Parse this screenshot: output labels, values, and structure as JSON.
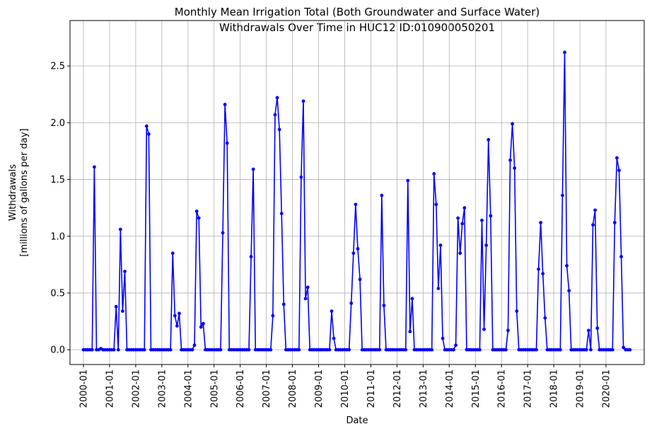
{
  "chart_data": {
    "type": "line",
    "title": [
      "Monthly Mean Irrigation Total (Both Groundwater and Surface Water)",
      "Withdrawals Over Time in HUC12 ID:010900050201"
    ],
    "xlabel": "Date",
    "ylabel": [
      "Withdrawals",
      "[millions of gallons per day]"
    ],
    "color": "#0000ff",
    "grid": true,
    "x": [
      "2000-01",
      "2000-02",
      "2000-03",
      "2000-04",
      "2000-05",
      "2000-06",
      "2000-07",
      "2000-08",
      "2000-09",
      "2000-10",
      "2000-11",
      "2000-12",
      "2001-01",
      "2001-02",
      "2001-03",
      "2001-04",
      "2001-05",
      "2001-06",
      "2001-07",
      "2001-08",
      "2001-09",
      "2001-10",
      "2001-11",
      "2001-12",
      "2002-01",
      "2002-02",
      "2002-03",
      "2002-04",
      "2002-05",
      "2002-06",
      "2002-07",
      "2002-08",
      "2002-09",
      "2002-10",
      "2002-11",
      "2002-12",
      "2003-01",
      "2003-02",
      "2003-03",
      "2003-04",
      "2003-05",
      "2003-06",
      "2003-07",
      "2003-08",
      "2003-09",
      "2003-10",
      "2003-11",
      "2003-12",
      "2004-01",
      "2004-02",
      "2004-03",
      "2004-04",
      "2004-05",
      "2004-06",
      "2004-07",
      "2004-08",
      "2004-09",
      "2004-10",
      "2004-11",
      "2004-12",
      "2005-01",
      "2005-02",
      "2005-03",
      "2005-04",
      "2005-05",
      "2005-06",
      "2005-07",
      "2005-08",
      "2005-09",
      "2005-10",
      "2005-11",
      "2005-12",
      "2006-01",
      "2006-02",
      "2006-03",
      "2006-04",
      "2006-05",
      "2006-06",
      "2006-07",
      "2006-08",
      "2006-09",
      "2006-10",
      "2006-11",
      "2006-12",
      "2007-01",
      "2007-02",
      "2007-03",
      "2007-04",
      "2007-05",
      "2007-06",
      "2007-07",
      "2007-08",
      "2007-09",
      "2007-10",
      "2007-11",
      "2007-12",
      "2008-01",
      "2008-02",
      "2008-03",
      "2008-04",
      "2008-05",
      "2008-06",
      "2008-07",
      "2008-08",
      "2008-09",
      "2008-10",
      "2008-11",
      "2008-12",
      "2009-01",
      "2009-02",
      "2009-03",
      "2009-04",
      "2009-05",
      "2009-06",
      "2009-07",
      "2009-08",
      "2009-09",
      "2009-10",
      "2009-11",
      "2009-12",
      "2010-01",
      "2010-02",
      "2010-03",
      "2010-04",
      "2010-05",
      "2010-06",
      "2010-07",
      "2010-08",
      "2010-09",
      "2010-10",
      "2010-11",
      "2010-12",
      "2011-01",
      "2011-02",
      "2011-03",
      "2011-04",
      "2011-05",
      "2011-06",
      "2011-07",
      "2011-08",
      "2011-09",
      "2011-10",
      "2011-11",
      "2011-12",
      "2012-01",
      "2012-02",
      "2012-03",
      "2012-04",
      "2012-05",
      "2012-06",
      "2012-07",
      "2012-08",
      "2012-09",
      "2012-10",
      "2012-11",
      "2012-12",
      "2013-01",
      "2013-02",
      "2013-03",
      "2013-04",
      "2013-05",
      "2013-06",
      "2013-07",
      "2013-08",
      "2013-09",
      "2013-10",
      "2013-11",
      "2013-12",
      "2014-01",
      "2014-02",
      "2014-03",
      "2014-04",
      "2014-05",
      "2014-06",
      "2014-07",
      "2014-08",
      "2014-09",
      "2014-10",
      "2014-11",
      "2014-12",
      "2015-01",
      "2015-02",
      "2015-03",
      "2015-04",
      "2015-05",
      "2015-06",
      "2015-07",
      "2015-08",
      "2015-09",
      "2015-10",
      "2015-11",
      "2015-12",
      "2016-01",
      "2016-02",
      "2016-03",
      "2016-04",
      "2016-05",
      "2016-06",
      "2016-07",
      "2016-08",
      "2016-09",
      "2016-10",
      "2016-11",
      "2016-12",
      "2017-01",
      "2017-02",
      "2017-03",
      "2017-04",
      "2017-05",
      "2017-06",
      "2017-07",
      "2017-08",
      "2017-09",
      "2017-10",
      "2017-11",
      "2017-12",
      "2018-01",
      "2018-02",
      "2018-03",
      "2018-04",
      "2018-05",
      "2018-06",
      "2018-07",
      "2018-08",
      "2018-09",
      "2018-10",
      "2018-11",
      "2018-12",
      "2019-01",
      "2019-02",
      "2019-03",
      "2019-04",
      "2019-05",
      "2019-06",
      "2019-07",
      "2019-08",
      "2019-09",
      "2019-10",
      "2019-11",
      "2019-12",
      "2020-01",
      "2020-02",
      "2020-03",
      "2020-04",
      "2020-05",
      "2020-06",
      "2020-07",
      "2020-08",
      "2020-09",
      "2020-10",
      "2020-11",
      "2020-12"
    ],
    "values": [
      0,
      0,
      0,
      0,
      0,
      1.61,
      0,
      0,
      0.01,
      0,
      0,
      0,
      0,
      0,
      0,
      0.38,
      0,
      1.06,
      0.34,
      0.69,
      0,
      0,
      0,
      0,
      0,
      0,
      0,
      0,
      0,
      1.97,
      1.9,
      0,
      0,
      0,
      0,
      0,
      0,
      0,
      0,
      0,
      0,
      0.85,
      0.3,
      0.21,
      0.32,
      0,
      0,
      0,
      0,
      0,
      0,
      0.04,
      1.22,
      1.16,
      0.2,
      0.23,
      0,
      0,
      0,
      0,
      0,
      0,
      0,
      0,
      1.03,
      2.16,
      1.82,
      0,
      0,
      0,
      0,
      0,
      0,
      0,
      0,
      0,
      0,
      0.82,
      1.59,
      0,
      0,
      0,
      0,
      0,
      0,
      0,
      0,
      0.3,
      2.07,
      2.22,
      1.94,
      1.2,
      0.4,
      0,
      0,
      0,
      0,
      0,
      0,
      0,
      1.52,
      2.19,
      0.45,
      0.55,
      0,
      0,
      0,
      0,
      0,
      0,
      0,
      0,
      0,
      0,
      0.34,
      0.1,
      0,
      0,
      0,
      0,
      0,
      0,
      0,
      0.41,
      0.85,
      1.28,
      0.89,
      0.62,
      0,
      0,
      0,
      0,
      0,
      0,
      0,
      0,
      0,
      1.36,
      0.39,
      0,
      0,
      0,
      0,
      0,
      0,
      0,
      0,
      0,
      0,
      1.49,
      0.16,
      0.45,
      0,
      0,
      0,
      0,
      0,
      0,
      0,
      0,
      0,
      1.55,
      1.28,
      0.54,
      0.92,
      0.1,
      0,
      0,
      0,
      0,
      0,
      0.04,
      1.16,
      0.85,
      1.11,
      1.25,
      0,
      0,
      0,
      0,
      0,
      0,
      0,
      1.14,
      0.18,
      0.92,
      1.85,
      1.18,
      0,
      0,
      0,
      0,
      0,
      0,
      0,
      0.17,
      1.67,
      1.99,
      1.6,
      0.34,
      0,
      0,
      0,
      0,
      0,
      0,
      0,
      0,
      0,
      0.71,
      1.12,
      0.67,
      0.28,
      0,
      0,
      0,
      0,
      0,
      0,
      0,
      1.36,
      2.62,
      0.74,
      0.52,
      0,
      0,
      0,
      0,
      0,
      0,
      0,
      0,
      0.17,
      0,
      1.1,
      1.23,
      0.19,
      0,
      0,
      0,
      0,
      0,
      0,
      0,
      1.12,
      1.69,
      1.58,
      0.82,
      0.02,
      0,
      0,
      0
    ],
    "xticks": [
      "2000-01",
      "2001-01",
      "2002-01",
      "2003-01",
      "2004-01",
      "2005-01",
      "2006-01",
      "2007-01",
      "2008-01",
      "2009-01",
      "2010-01",
      "2011-01",
      "2012-01",
      "2013-01",
      "2014-01",
      "2015-01",
      "2016-01",
      "2017-01",
      "2018-01",
      "2019-01",
      "2020-01"
    ],
    "ylim": [
      -0.13,
      2.9
    ],
    "yticks": [
      {
        "value": 0,
        "label": "0.0"
      },
      0.5,
      {
        "value": 1,
        "label": "1.0"
      },
      1.5,
      {
        "value": 2,
        "label": "2.0"
      },
      2.5
    ]
  }
}
